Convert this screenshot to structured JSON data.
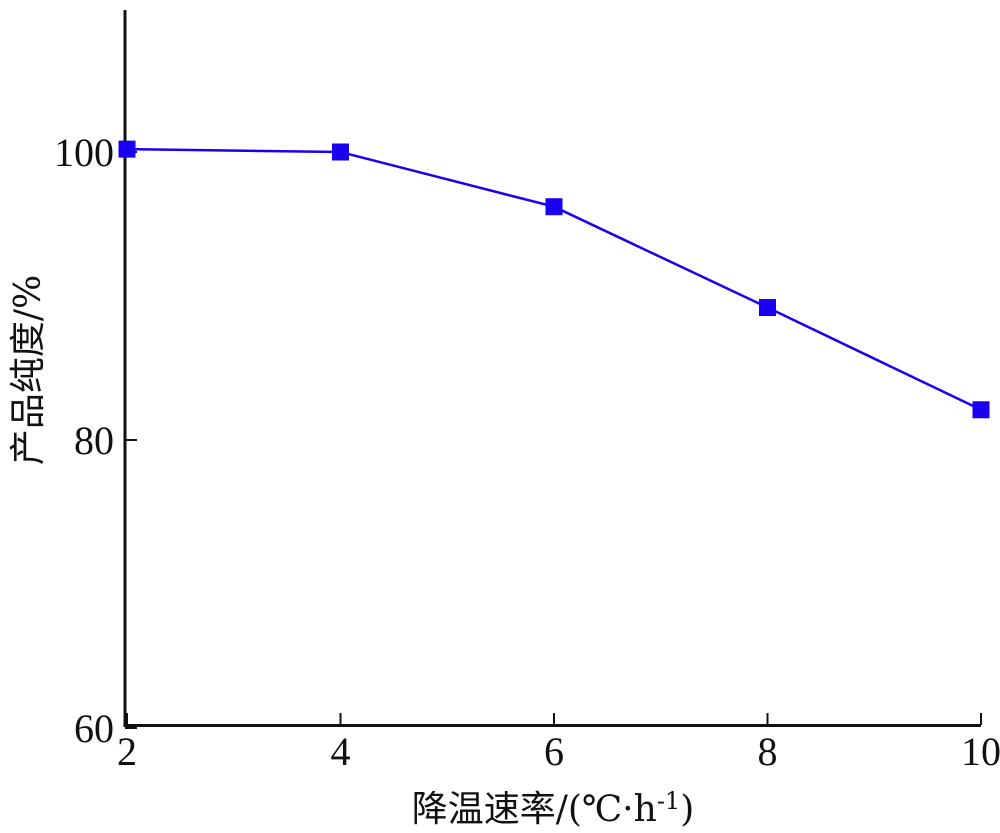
{
  "chart_data": {
    "type": "line",
    "title": "",
    "xlabel": "降温速率/(℃·h",
    "xlabel_superscript": "-1",
    "xlabel_close": ")",
    "ylabel": "产品纯度/%",
    "xlim": [
      2,
      10
    ],
    "ylim": [
      60,
      110
    ],
    "xticks": [
      2,
      4,
      6,
      8,
      10
    ],
    "yticks": [
      60,
      80,
      100
    ],
    "grid": false,
    "legend": "none",
    "marker": "square",
    "color": "#1a00f0",
    "series": [
      {
        "x": [
          2,
          4,
          6,
          8,
          10
        ],
        "y": [
          100.2,
          100.0,
          96.2,
          89.2,
          82.1
        ]
      }
    ]
  }
}
